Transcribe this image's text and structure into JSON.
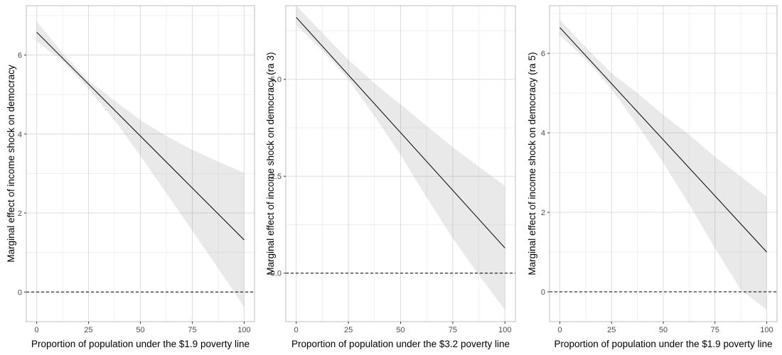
{
  "chart_data": [
    {
      "type": "line",
      "xlabel": "Proportion of population under the $1.9 poverty line",
      "ylabel": "Marginal effect of income shock on democracy",
      "xlim": [
        -5,
        105
      ],
      "ylim": [
        -0.75,
        7.25
      ],
      "x_ticks": [
        0,
        25,
        50,
        75,
        100
      ],
      "x_tick_labels": [
        "0",
        "25",
        "50",
        "75",
        "100"
      ],
      "y_ticks": [
        0,
        2,
        4,
        6
      ],
      "y_tick_labels": [
        "0",
        "2",
        "4",
        "6"
      ],
      "y_minor_ticks": [
        1,
        3,
        5,
        7
      ],
      "grid": true,
      "reference_line": {
        "y": 0,
        "style": "dashed"
      },
      "series": [
        {
          "x": [
            0,
            100
          ],
          "y": [
            6.58,
            1.32
          ]
        }
      ],
      "confidence_band": {
        "x": [
          0,
          12.5,
          25,
          37.5,
          50,
          62.5,
          75,
          87.5,
          100
        ],
        "lower": [
          6.35,
          5.85,
          5.15,
          4.35,
          3.45,
          2.5,
          1.55,
          0.6,
          -0.38
        ],
        "upper": [
          6.85,
          6.05,
          5.35,
          4.85,
          4.35,
          3.95,
          3.6,
          3.3,
          3.02
        ]
      }
    },
    {
      "type": "line",
      "xlabel": "Proportion of population under the $3.2 poverty line",
      "ylabel": "Marginal effect of income shock on democracy (ra 3)",
      "xlim": [
        -5,
        105
      ],
      "ylim": [
        -1.25,
        6.9
      ],
      "x_ticks": [
        0,
        25,
        50,
        75,
        100
      ],
      "x_tick_labels": [
        "0",
        "25",
        "50",
        "75",
        "100"
      ],
      "y_ticks": [
        0,
        2.5,
        5
      ],
      "y_tick_labels": [
        "0.0",
        "2.5",
        "5.0"
      ],
      "y_minor_ticks": [
        -1.25,
        1.25,
        3.75,
        6.25
      ],
      "grid": true,
      "reference_line": {
        "y": 0,
        "style": "dashed"
      },
      "series": [
        {
          "x": [
            0,
            100
          ],
          "y": [
            6.6,
            0.65
          ]
        }
      ],
      "confidence_band": {
        "x": [
          0,
          12.5,
          25,
          37.5,
          50,
          62.5,
          75,
          87.5,
          100
        ],
        "lower": [
          6.4,
          5.75,
          5.0,
          4.05,
          3.05,
          1.95,
          0.9,
          -0.05,
          -0.95
        ],
        "upper": [
          6.9,
          6.2,
          5.5,
          4.9,
          4.35,
          3.8,
          3.25,
          2.75,
          2.25
        ]
      }
    },
    {
      "type": "line",
      "xlabel": "Proportion of population under the $1.9 poverty line",
      "ylabel": "Marginal effect of income shock on democracy (ra 5)",
      "xlim": [
        -5,
        105
      ],
      "ylim": [
        -0.75,
        7.2
      ],
      "x_ticks": [
        0,
        25,
        50,
        75,
        100
      ],
      "x_tick_labels": [
        "0",
        "25",
        "50",
        "75",
        "100"
      ],
      "y_ticks": [
        0,
        2,
        4,
        6
      ],
      "y_tick_labels": [
        "0",
        "2",
        "4",
        "6"
      ],
      "y_minor_ticks": [
        1,
        3,
        5,
        7
      ],
      "grid": true,
      "reference_line": {
        "y": 0,
        "style": "dashed"
      },
      "series": [
        {
          "x": [
            0,
            100
          ],
          "y": [
            6.65,
            1.0
          ]
        }
      ],
      "confidence_band": {
        "x": [
          0,
          12.5,
          25,
          37.5,
          50,
          62.5,
          75,
          87.5,
          100
        ],
        "lower": [
          6.45,
          5.85,
          5.1,
          4.2,
          3.25,
          2.2,
          1.1,
          0.05,
          -0.45
        ],
        "upper": [
          6.85,
          6.15,
          5.5,
          5.0,
          4.45,
          3.95,
          3.4,
          2.9,
          2.4
        ]
      }
    }
  ]
}
